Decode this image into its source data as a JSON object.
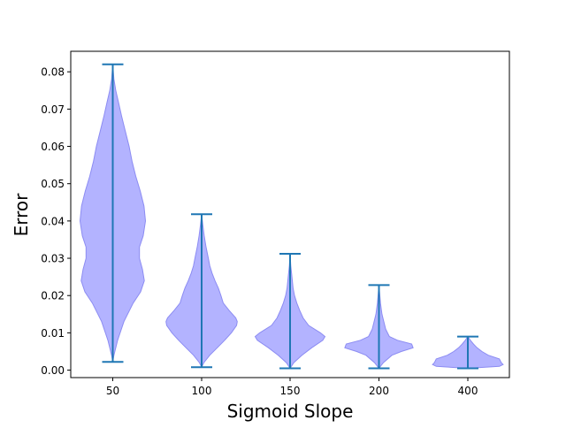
{
  "chart_data": {
    "type": "violin",
    "title": "",
    "xlabel": "Sigmoid Slope",
    "ylabel": "Error",
    "categories": [
      "50",
      "100",
      "150",
      "200",
      "400"
    ],
    "ylim": [
      -0.002,
      0.0855
    ],
    "yticks": [
      0.0,
      0.01,
      0.02,
      0.03,
      0.04,
      0.05,
      0.06,
      0.07,
      0.08
    ],
    "ytick_labels": [
      "0.00",
      "0.01",
      "0.02",
      "0.03",
      "0.04",
      "0.05",
      "0.06",
      "0.07",
      "0.08"
    ],
    "grid": false,
    "colors": {
      "body_fill": "#b3b3ff",
      "body_edge": "#8c8cf2",
      "lines": "#1f77b4"
    },
    "violins": [
      {
        "category": "50",
        "min": 0.0022,
        "max": 0.082,
        "profile": [
          [
            0.0022,
            0.0
          ],
          [
            0.004,
            0.03
          ],
          [
            0.008,
            0.13
          ],
          [
            0.013,
            0.3
          ],
          [
            0.018,
            0.55
          ],
          [
            0.021,
            0.75
          ],
          [
            0.024,
            0.85
          ],
          [
            0.027,
            0.8
          ],
          [
            0.03,
            0.72
          ],
          [
            0.033,
            0.72
          ],
          [
            0.036,
            0.82
          ],
          [
            0.04,
            0.88
          ],
          [
            0.044,
            0.84
          ],
          [
            0.048,
            0.74
          ],
          [
            0.052,
            0.62
          ],
          [
            0.056,
            0.52
          ],
          [
            0.06,
            0.44
          ],
          [
            0.064,
            0.34
          ],
          [
            0.068,
            0.24
          ],
          [
            0.072,
            0.15
          ],
          [
            0.075,
            0.08
          ],
          [
            0.078,
            0.03
          ],
          [
            0.082,
            0.0
          ]
        ]
      },
      {
        "category": "100",
        "min": 0.0008,
        "max": 0.0418,
        "profile": [
          [
            0.0008,
            0.0
          ],
          [
            0.002,
            0.06
          ],
          [
            0.004,
            0.22
          ],
          [
            0.006,
            0.42
          ],
          [
            0.008,
            0.62
          ],
          [
            0.01,
            0.8
          ],
          [
            0.012,
            0.94
          ],
          [
            0.013,
            0.96
          ],
          [
            0.014,
            0.92
          ],
          [
            0.016,
            0.74
          ],
          [
            0.018,
            0.58
          ],
          [
            0.02,
            0.52
          ],
          [
            0.022,
            0.45
          ],
          [
            0.024,
            0.36
          ],
          [
            0.026,
            0.28
          ],
          [
            0.028,
            0.22
          ],
          [
            0.03,
            0.18
          ],
          [
            0.033,
            0.12
          ],
          [
            0.036,
            0.07
          ],
          [
            0.039,
            0.03
          ],
          [
            0.0418,
            0.0
          ]
        ]
      },
      {
        "category": "150",
        "min": 0.0005,
        "max": 0.0312,
        "profile": [
          [
            0.0005,
            0.0
          ],
          [
            0.002,
            0.1
          ],
          [
            0.004,
            0.32
          ],
          [
            0.006,
            0.58
          ],
          [
            0.008,
            0.88
          ],
          [
            0.009,
            0.94
          ],
          [
            0.01,
            0.82
          ],
          [
            0.012,
            0.5
          ],
          [
            0.014,
            0.35
          ],
          [
            0.016,
            0.26
          ],
          [
            0.018,
            0.18
          ],
          [
            0.02,
            0.12
          ],
          [
            0.022,
            0.08
          ],
          [
            0.025,
            0.05
          ],
          [
            0.028,
            0.02
          ],
          [
            0.0312,
            0.0
          ]
        ]
      },
      {
        "category": "200",
        "min": 0.0005,
        "max": 0.0228,
        "profile": [
          [
            0.0005,
            0.0
          ],
          [
            0.002,
            0.12
          ],
          [
            0.004,
            0.35
          ],
          [
            0.005,
            0.6
          ],
          [
            0.006,
            0.92
          ],
          [
            0.007,
            0.88
          ],
          [
            0.008,
            0.5
          ],
          [
            0.009,
            0.28
          ],
          [
            0.011,
            0.18
          ],
          [
            0.013,
            0.13
          ],
          [
            0.015,
            0.08
          ],
          [
            0.018,
            0.04
          ],
          [
            0.0228,
            0.0
          ]
        ]
      },
      {
        "category": "400",
        "min": 0.0005,
        "max": 0.009,
        "profile": [
          [
            0.0005,
            0.0
          ],
          [
            0.001,
            0.85
          ],
          [
            0.0015,
            0.95
          ],
          [
            0.002,
            0.9
          ],
          [
            0.003,
            0.85
          ],
          [
            0.004,
            0.55
          ],
          [
            0.005,
            0.38
          ],
          [
            0.006,
            0.25
          ],
          [
            0.007,
            0.15
          ],
          [
            0.008,
            0.07
          ],
          [
            0.009,
            0.0
          ]
        ]
      }
    ]
  }
}
